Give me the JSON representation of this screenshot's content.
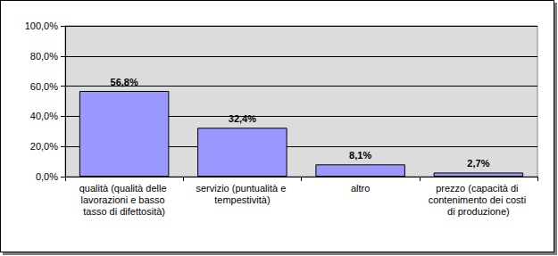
{
  "chart_data": {
    "type": "bar",
    "categories": [
      "qualità (qualità delle lavorazioni e basso tasso di difettosità)",
      "servizio (puntualità e tempestività)",
      "altro",
      "prezzo (capacità di contenimento dei costi di produzione)"
    ],
    "values": [
      56.8,
      32.4,
      8.1,
      2.7
    ],
    "value_labels": [
      "56,8%",
      "32,4%",
      "8,1%",
      "2,7%"
    ],
    "data_labels": true,
    "color": "#9999ff",
    "ylim": [
      0,
      100
    ],
    "yticks": [
      {
        "value": 0,
        "label": "0,0%"
      },
      {
        "value": 20,
        "label": "20,0%"
      },
      {
        "value": 40,
        "label": "40,0%"
      },
      {
        "value": 60,
        "label": "60,0%"
      },
      {
        "value": 80,
        "label": "80,0%"
      },
      {
        "value": 100,
        "label": "100,0%"
      }
    ],
    "grid": true
  }
}
